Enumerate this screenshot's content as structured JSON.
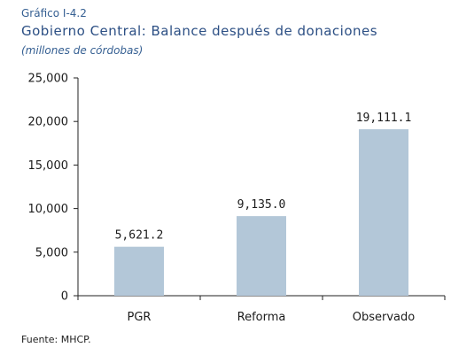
{
  "header": {
    "kicker": "Gráfico I-4.2",
    "title": "Gobierno Central: Balance después de donaciones",
    "units": "(millones de córdobas)"
  },
  "source": "Fuente: MHCP.",
  "colors": {
    "bar": "#b3c7d8",
    "axis": "#222222",
    "text": "#1b1b1b",
    "title": "#2c4f84"
  },
  "chart_data": {
    "type": "bar",
    "title": "Gobierno Central: Balance después de donaciones",
    "subtitle": "(millones de córdobas)",
    "categories": [
      "PGR",
      "Reforma",
      "Observado"
    ],
    "values": [
      5621.2,
      9135.0,
      19111.1
    ],
    "value_labels": [
      "5,621.2",
      "9,135.0",
      "19,111.1"
    ],
    "y_ticks": [
      0,
      5000,
      10000,
      15000,
      20000,
      25000
    ],
    "y_tick_labels": [
      "0",
      "5,000",
      "10,000",
      "15,000",
      "20,000",
      "25,000"
    ],
    "ylim": [
      0,
      25000
    ],
    "grid": false,
    "legend": "none",
    "xlabel": "",
    "ylabel": ""
  }
}
